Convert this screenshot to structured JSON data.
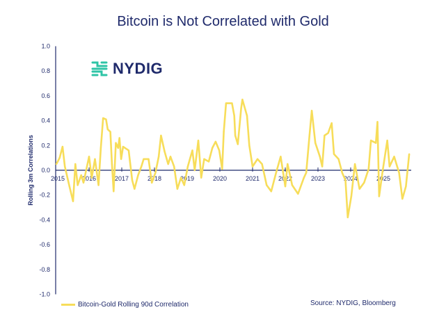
{
  "chart_data": {
    "type": "line",
    "title": "Bitcoin is Not Correlated with Gold",
    "xlabel": "",
    "ylabel": "Rolling 3m Correlations",
    "ylim": [
      -1.0,
      1.0
    ],
    "xlim": [
      2015,
      2025.8
    ],
    "yticks": [
      "1.0",
      "0.8",
      "0.6",
      "0.4",
      "0.2",
      "0.0",
      "-0.2",
      "-0.4",
      "-0.6",
      "-0.8",
      "-1.0"
    ],
    "ytick_values": [
      1.0,
      0.8,
      0.6,
      0.4,
      0.2,
      0.0,
      -0.2,
      -0.4,
      -0.6,
      -0.8,
      -1.0
    ],
    "xticks": [
      "2015",
      "2016",
      "2017",
      "2018",
      "2019",
      "2020",
      "2021",
      "2022",
      "2023",
      "2024",
      "2025"
    ],
    "grid": false,
    "legend_position": "bottom-left",
    "series": [
      {
        "name": "Bitcoin-Gold Rolling 90d Correlation",
        "color": "#f7dd5a",
        "points": [
          [
            2015.0,
            0.05
          ],
          [
            2015.1,
            0.1
          ],
          [
            2015.19,
            0.19
          ],
          [
            2015.26,
            0.03
          ],
          [
            2015.4,
            -0.13
          ],
          [
            2015.51,
            -0.25
          ],
          [
            2015.58,
            0.05
          ],
          [
            2015.65,
            -0.12
          ],
          [
            2015.76,
            -0.04
          ],
          [
            2015.83,
            -0.1
          ],
          [
            2016.0,
            0.11
          ],
          [
            2016.08,
            -0.06
          ],
          [
            2016.18,
            0.09
          ],
          [
            2016.29,
            -0.12
          ],
          [
            2016.36,
            0.18
          ],
          [
            2016.43,
            0.42
          ],
          [
            2016.52,
            0.41
          ],
          [
            2016.57,
            0.33
          ],
          [
            2016.65,
            0.31
          ],
          [
            2016.7,
            0.05
          ],
          [
            2016.75,
            -0.17
          ],
          [
            2016.82,
            0.22
          ],
          [
            2016.89,
            0.18
          ],
          [
            2016.93,
            0.26
          ],
          [
            2016.98,
            0.09
          ],
          [
            2017.04,
            0.19
          ],
          [
            2017.21,
            0.16
          ],
          [
            2017.32,
            -0.08
          ],
          [
            2017.39,
            -0.15
          ],
          [
            2017.5,
            -0.04
          ],
          [
            2017.6,
            0.03
          ],
          [
            2017.67,
            0.09
          ],
          [
            2017.82,
            0.09
          ],
          [
            2017.92,
            -0.1
          ],
          [
            2018.03,
            -0.02
          ],
          [
            2018.13,
            0.11
          ],
          [
            2018.2,
            0.28
          ],
          [
            2018.31,
            0.15
          ],
          [
            2018.42,
            0.05
          ],
          [
            2018.49,
            0.11
          ],
          [
            2018.6,
            0.03
          ],
          [
            2018.7,
            -0.15
          ],
          [
            2018.81,
            -0.06
          ],
          [
            2018.91,
            -0.12
          ],
          [
            2019.02,
            0.03
          ],
          [
            2019.16,
            0.16
          ],
          [
            2019.23,
            0.0
          ],
          [
            2019.34,
            0.24
          ],
          [
            2019.43,
            -0.06
          ],
          [
            2019.52,
            0.09
          ],
          [
            2019.66,
            0.07
          ],
          [
            2019.77,
            0.18
          ],
          [
            2019.87,
            0.23
          ],
          [
            2019.98,
            0.16
          ],
          [
            2020.07,
            0.01
          ],
          [
            2020.12,
            0.31
          ],
          [
            2020.19,
            0.54
          ],
          [
            2020.37,
            0.54
          ],
          [
            2020.44,
            0.44
          ],
          [
            2020.47,
            0.28
          ],
          [
            2020.55,
            0.21
          ],
          [
            2020.65,
            0.5
          ],
          [
            2020.69,
            0.57
          ],
          [
            2020.83,
            0.44
          ],
          [
            2020.9,
            0.2
          ],
          [
            2021.0,
            0.03
          ],
          [
            2021.15,
            0.09
          ],
          [
            2021.29,
            0.05
          ],
          [
            2021.43,
            -0.12
          ],
          [
            2021.57,
            -0.17
          ],
          [
            2021.72,
            -0.02
          ],
          [
            2021.86,
            0.11
          ],
          [
            2022.0,
            -0.13
          ],
          [
            2022.07,
            0.05
          ],
          [
            2022.21,
            -0.12
          ],
          [
            2022.39,
            -0.19
          ],
          [
            2022.57,
            -0.06
          ],
          [
            2022.64,
            -0.02
          ],
          [
            2022.74,
            0.28
          ],
          [
            2022.81,
            0.48
          ],
          [
            2022.92,
            0.22
          ],
          [
            2023.06,
            0.11
          ],
          [
            2023.13,
            0.03
          ],
          [
            2023.2,
            0.28
          ],
          [
            2023.31,
            0.3
          ],
          [
            2023.42,
            0.38
          ],
          [
            2023.49,
            0.13
          ],
          [
            2023.63,
            0.09
          ],
          [
            2023.74,
            -0.02
          ],
          [
            2023.84,
            -0.08
          ],
          [
            2023.91,
            -0.38
          ],
          [
            2024.02,
            -0.21
          ],
          [
            2024.13,
            0.05
          ],
          [
            2024.27,
            -0.15
          ],
          [
            2024.41,
            -0.1
          ],
          [
            2024.55,
            0.01
          ],
          [
            2024.62,
            0.24
          ],
          [
            2024.77,
            0.22
          ],
          [
            2024.82,
            0.39
          ],
          [
            2024.87,
            -0.21
          ],
          [
            2024.98,
            0.0
          ],
          [
            2025.12,
            0.24
          ],
          [
            2025.19,
            0.03
          ],
          [
            2025.33,
            0.11
          ],
          [
            2025.48,
            -0.02
          ],
          [
            2025.58,
            -0.23
          ],
          [
            2025.69,
            -0.13
          ],
          [
            2025.79,
            0.13
          ]
        ]
      }
    ],
    "source": "Source: NYDIG, Bloomberg"
  },
  "logo": {
    "text": "NYDIG",
    "icon": "nydig-logo-icon",
    "icon_color": "#2ec4a6"
  },
  "colors": {
    "text": "#1f2a6b",
    "axis": "#1f2a6b",
    "line": "#f7dd5a"
  }
}
